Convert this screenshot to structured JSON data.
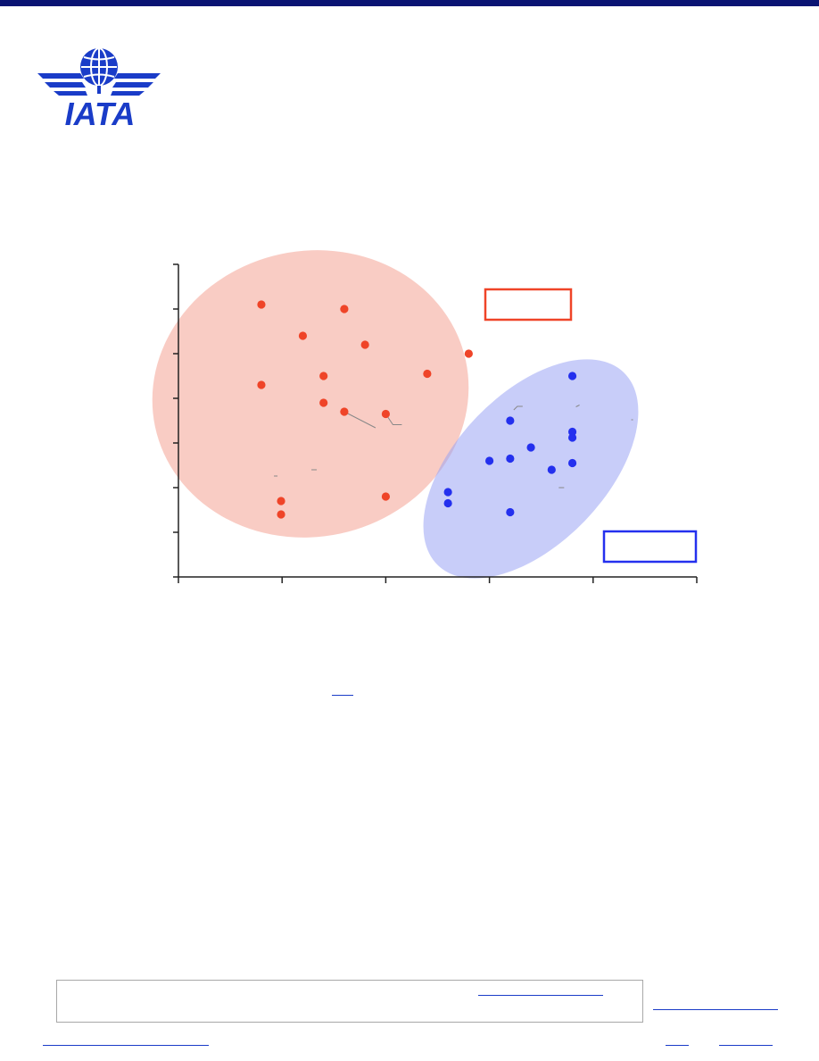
{
  "colors": {
    "brand": "#1a3cc8",
    "red_group": "#ef4428",
    "red_fill": "#f4a394",
    "blue_group": "#2430ee",
    "blue_fill": "#9aa4f4",
    "axis": "#222222",
    "leader": "#888888"
  },
  "logo": {
    "text": "IATA",
    "icon": "globe-wings-icon"
  },
  "chart_data": {
    "type": "scatter",
    "title": "",
    "xlabel": "",
    "ylabel": "",
    "xlim": [
      0,
      5
    ],
    "ylim": [
      0,
      7
    ],
    "grid": false,
    "legend": "none",
    "x_ticks": [
      0,
      1,
      2,
      3,
      4,
      5
    ],
    "y_ticks": [
      0,
      1,
      2,
      3,
      4,
      5,
      6,
      7
    ],
    "series": [
      {
        "points": [
          [
            0.8,
            6.1
          ],
          [
            1.6,
            6.0
          ],
          [
            1.2,
            5.4
          ],
          [
            1.8,
            5.2
          ],
          [
            2.8,
            5.0
          ],
          [
            0.8,
            4.3
          ],
          [
            1.4,
            4.5
          ],
          [
            2.4,
            4.55
          ],
          [
            1.4,
            3.9
          ],
          [
            1.6,
            3.7
          ],
          [
            2.0,
            3.65
          ],
          [
            0.99,
            1.7
          ],
          [
            2.0,
            1.8
          ],
          [
            0.99,
            1.4
          ]
        ]
      },
      {
        "points": [
          [
            3.8,
            4.5
          ],
          [
            3.2,
            3.5
          ],
          [
            3.8,
            3.25
          ],
          [
            3.8,
            3.12
          ],
          [
            3.4,
            2.9
          ],
          [
            3.0,
            2.6
          ],
          [
            3.2,
            2.65
          ],
          [
            3.6,
            2.4
          ],
          [
            3.8,
            2.55
          ],
          [
            2.6,
            1.9
          ],
          [
            2.6,
            1.65
          ],
          [
            3.2,
            1.45
          ]
        ]
      }
    ]
  }
}
